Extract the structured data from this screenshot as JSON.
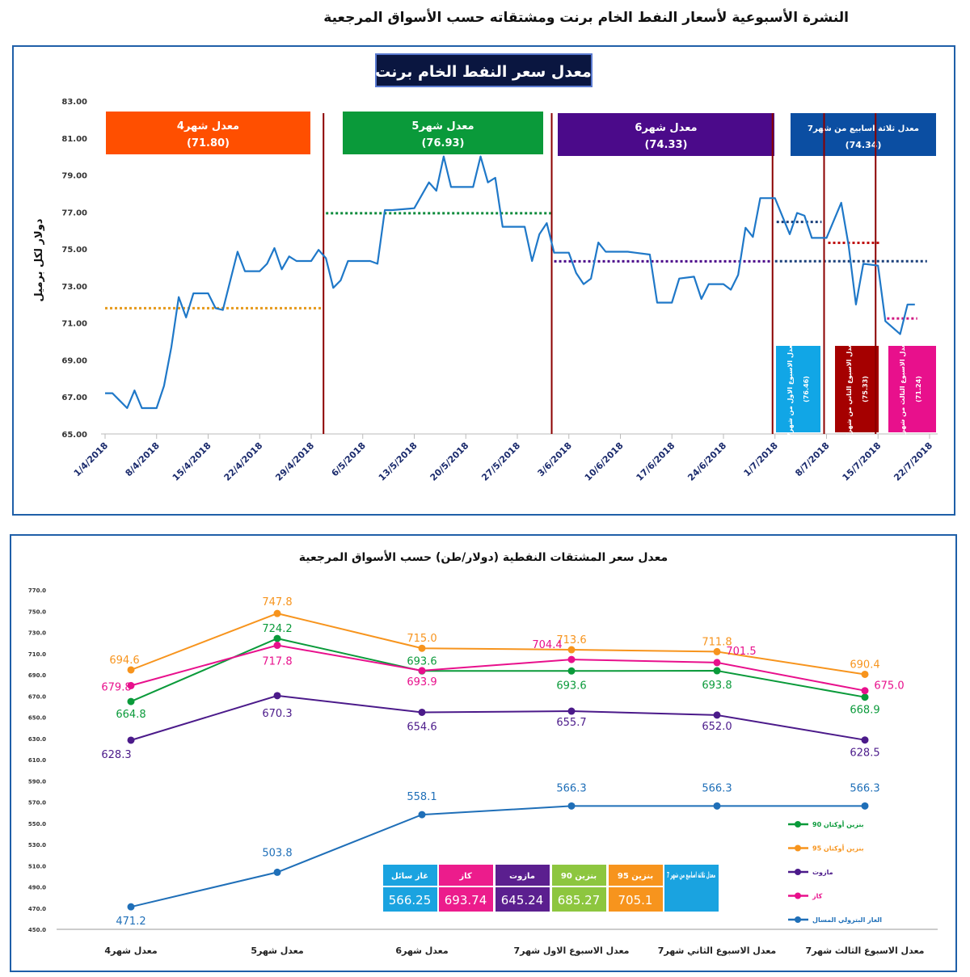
{
  "page_title": "النشرة الأسبوعية  لأسعار النفط الخام برنت ومشتقاته حسب الأسواق المرجعية",
  "chart_data": [
    {
      "type": "line",
      "title": "معدل سعر النفط الخام  برنت",
      "ylabel": "دولار لكل برميل",
      "ylim": [
        65,
        83
      ],
      "yticks": [
        "65.00",
        "67.00",
        "69.00",
        "71.00",
        "73.00",
        "75.00",
        "77.00",
        "79.00",
        "81.00",
        "83.00"
      ],
      "xlim": [
        "2018-04-01",
        "2018-07-22"
      ],
      "xticks": [
        "1/4/2018",
        "8/4/2018",
        "15/4/2018",
        "22/4/2018",
        "29/4/2018",
        "6/5/2018",
        "13/5/2018",
        "20/5/2018",
        "27/5/2018",
        "3/6/2018",
        "10/6/2018",
        "17/6/2018",
        "24/6/2018",
        "1/7/2018",
        "8/7/2018",
        "15/7/2018",
        "22/7/2018"
      ],
      "grid": false,
      "line_color": "#1f78c8",
      "series": [
        {
          "points": [
            [
              "2018-04-01",
              67.2
            ],
            [
              "2018-04-02",
              67.2
            ],
            [
              "2018-04-03",
              66.8
            ],
            [
              "2018-04-04",
              66.4
            ],
            [
              "2018-04-05",
              67.35
            ],
            [
              "2018-04-06",
              66.4
            ],
            [
              "2018-04-08",
              66.4
            ],
            [
              "2018-04-09",
              67.6
            ],
            [
              "2018-04-10",
              69.7
            ],
            [
              "2018-04-11",
              72.4
            ],
            [
              "2018-04-12",
              71.3
            ],
            [
              "2018-04-13",
              72.6
            ],
            [
              "2018-04-15",
              72.6
            ],
            [
              "2018-04-16",
              71.8
            ],
            [
              "2018-04-17",
              71.7
            ],
            [
              "2018-04-19",
              74.85
            ],
            [
              "2018-04-20",
              73.8
            ],
            [
              "2018-04-22",
              73.8
            ],
            [
              "2018-04-23",
              74.2
            ],
            [
              "2018-04-24",
              75.05
            ],
            [
              "2018-04-25",
              73.9
            ],
            [
              "2018-04-26",
              74.6
            ],
            [
              "2018-04-27",
              74.35
            ],
            [
              "2018-04-29",
              74.35
            ],
            [
              "2018-04-30",
              74.95
            ],
            [
              "2018-05-01",
              74.5
            ],
            [
              "2018-05-02",
              72.9
            ],
            [
              "2018-05-03",
              73.3
            ],
            [
              "2018-05-04",
              74.35
            ],
            [
              "2018-05-07",
              74.35
            ],
            [
              "2018-05-08",
              74.2
            ],
            [
              "2018-05-09",
              77.1
            ],
            [
              "2018-05-10",
              77.1
            ],
            [
              "2018-05-13",
              77.2
            ],
            [
              "2018-05-15",
              78.6
            ],
            [
              "2018-05-16",
              78.15
            ],
            [
              "2018-05-17",
              80.0
            ],
            [
              "2018-05-18",
              78.35
            ],
            [
              "2018-05-21",
              78.35
            ],
            [
              "2018-05-22",
              80.0
            ],
            [
              "2018-05-23",
              78.6
            ],
            [
              "2018-05-24",
              78.85
            ],
            [
              "2018-05-25",
              76.2
            ],
            [
              "2018-05-28",
              76.2
            ],
            [
              "2018-05-29",
              74.35
            ],
            [
              "2018-05-30",
              75.8
            ],
            [
              "2018-05-31",
              76.4
            ],
            [
              "2018-06-01",
              74.8
            ],
            [
              "2018-06-03",
              74.8
            ],
            [
              "2018-06-04",
              73.7
            ],
            [
              "2018-06-05",
              73.1
            ],
            [
              "2018-06-06",
              73.4
            ],
            [
              "2018-06-07",
              75.35
            ],
            [
              "2018-06-08",
              74.85
            ],
            [
              "2018-06-11",
              74.85
            ],
            [
              "2018-06-12",
              74.8
            ],
            [
              "2018-06-14",
              74.7
            ],
            [
              "2018-06-15",
              72.1
            ],
            [
              "2018-06-17",
              72.1
            ],
            [
              "2018-06-18",
              73.4
            ],
            [
              "2018-06-20",
              73.5
            ],
            [
              "2018-06-21",
              72.3
            ],
            [
              "2018-06-22",
              73.1
            ],
            [
              "2018-06-24",
              73.1
            ],
            [
              "2018-06-25",
              72.8
            ],
            [
              "2018-06-26",
              73.6
            ],
            [
              "2018-06-27",
              76.15
            ],
            [
              "2018-06-28",
              75.65
            ],
            [
              "2018-06-29",
              77.75
            ],
            [
              "2018-07-01",
              77.75
            ],
            [
              "2018-07-03",
              75.8
            ],
            [
              "2018-07-04",
              76.95
            ],
            [
              "2018-07-05",
              76.8
            ],
            [
              "2018-07-06",
              75.6
            ],
            [
              "2018-07-08",
              75.6
            ],
            [
              "2018-07-10",
              77.5
            ],
            [
              "2018-07-11",
              75.2
            ],
            [
              "2018-07-12",
              72.0
            ],
            [
              "2018-07-13",
              74.2
            ],
            [
              "2018-07-15",
              74.1
            ],
            [
              "2018-07-16",
              71.1
            ],
            [
              "2018-07-18",
              70.4
            ],
            [
              "2018-07-19",
              72.0
            ],
            [
              "2018-07-20",
              72.0
            ]
          ]
        }
      ],
      "period_dividers": [
        "2018-05-01",
        "2018-06-01",
        "2018-07-01",
        "2018-07-08",
        "2018-07-15"
      ],
      "period_averages": [
        {
          "label": "معدل شهر4",
          "value_text": "(71.80)",
          "value": 71.8,
          "from": "2018-04-01",
          "to": "2018-04-30",
          "color": "#ff4f00",
          "line_color": "#e69a1c"
        },
        {
          "label": "معدل شهر5",
          "value_text": "(76.93)",
          "value": 76.93,
          "from": "2018-05-01",
          "to": "2018-05-31",
          "color": "#0a9a3a",
          "line_color": "#0a8a3a"
        },
        {
          "label": "معدل شهر6",
          "value_text": "(74.33)",
          "value": 74.33,
          "from": "2018-06-01",
          "to": "2018-06-30",
          "color": "#4b0a8a",
          "line_color": "#4b0a8a"
        },
        {
          "label": "معدل ثلاثة اسابيع من شهر7",
          "value_text": "(74.34)",
          "value": 74.34,
          "from": "2018-07-01",
          "to": "2018-07-20",
          "color": "#0b4ea2",
          "line_color": "#1a3f7a"
        }
      ],
      "week_averages": [
        {
          "label": "معدل الاسبوع الاول من شهر7",
          "value_text": "(76.46)",
          "value": 76.46,
          "from": "2018-07-01",
          "to": "2018-07-07",
          "color": "#11a6e6",
          "line_color": "#1a3f7a"
        },
        {
          "label": "معدل الاسبوع الثاني من شهر7",
          "value_text": "(75.33)",
          "value": 75.33,
          "from": "2018-07-08",
          "to": "2018-07-15",
          "color": "#a50000",
          "line_color": "#c01010"
        },
        {
          "label": "معدل الاسبوع الثالث من شهر7",
          "value_text": "(71.24)",
          "value": 71.24,
          "from": "2018-07-16",
          "to": "2018-07-20",
          "color": "#e8108c",
          "line_color": "#d01880"
        }
      ]
    },
    {
      "type": "line",
      "title": "معدل سعر المشتقات  النفطية (دولار/طن) حسب الأسواق المرجعية",
      "ylim": [
        450,
        770
      ],
      "yticks": [
        "450.0",
        "470.0",
        "490.0",
        "510.0",
        "530.0",
        "550.0",
        "570.0",
        "590.0",
        "610.0",
        "630.0",
        "650.0",
        "670.0",
        "690.0",
        "710.0",
        "730.0",
        "750.0",
        "770.0"
      ],
      "categories": [
        "معدل شهر4",
        "معدل شهر5",
        "معدل شهر6",
        "معدل الاسبوع الاول شهر7",
        "معدل الاسبوع الثاني شهر7",
        "معدل الاسبوع الثالث شهر7"
      ],
      "grid": false,
      "legend_position": "right",
      "series": [
        {
          "name": "بنزين أوكتان 90",
          "color": "#0a9a3a",
          "values": [
            664.8,
            724.2,
            693.6,
            693.6,
            693.8,
            668.9
          ],
          "labels": [
            "664.8",
            "724.2",
            "693.6",
            "693.6",
            "693.8",
            "668.9"
          ]
        },
        {
          "name": "بنزين أوكتان 95",
          "color": "#f7941d",
          "values": [
            694.6,
            747.8,
            715.0,
            713.6,
            711.8,
            690.4
          ],
          "labels": [
            "694.6",
            "747.8",
            "715.0",
            "713.6",
            "711.8",
            "690.4"
          ]
        },
        {
          "name": "مازوت",
          "color": "#4b1a8a",
          "values": [
            628.3,
            670.3,
            654.6,
            655.7,
            652.0,
            628.5
          ],
          "labels": [
            "628.3",
            "670.3",
            "654.6",
            "655.7",
            "652.0",
            "628.5"
          ]
        },
        {
          "name": "كاز",
          "color": "#e8108c",
          "values": [
            679.8,
            717.8,
            693.9,
            704.4,
            701.5,
            675.0
          ],
          "labels": [
            "679.8",
            "717.8",
            "693.9",
            "704.4",
            "701.5",
            "675.0"
          ]
        },
        {
          "name": "الغاز البترولي المسال",
          "color": "#1f6fb8",
          "values": [
            471.2,
            503.8,
            558.1,
            566.3,
            566.3,
            566.3
          ],
          "labels": [
            "471.2",
            "503.8",
            "558.1",
            "566.3",
            "566.3",
            "566.3"
          ]
        }
      ],
      "summary_table": {
        "header": "معدل ثلاثة اسابيع من شهر 7",
        "header_color": "#1aa3e0",
        "columns": [
          {
            "label": "بنزين 95",
            "value": "705.1",
            "color": "#f7941d"
          },
          {
            "label": "بنزين 90",
            "value": "685.27",
            "color": "#8dc63f"
          },
          {
            "label": "مازوت",
            "value": "645.24",
            "color": "#5b1f8f"
          },
          {
            "label": "كاز",
            "value": "693.74",
            "color": "#ec1c8c"
          },
          {
            "label": "غاز سائل",
            "value": "566.25",
            "color": "#1aa3e0"
          }
        ]
      }
    }
  ]
}
